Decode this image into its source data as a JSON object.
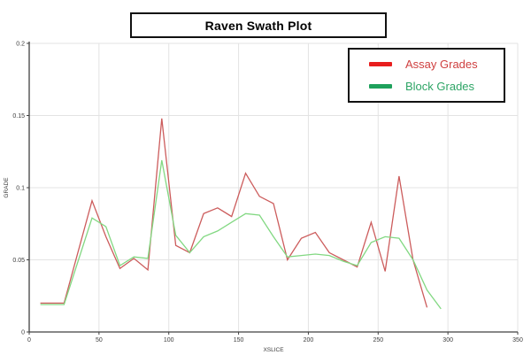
{
  "title": "Raven Swath Plot",
  "legend": {
    "items": [
      {
        "label": "Assay Grades",
        "color": "#e81e1e",
        "text_color": "#cf4040"
      },
      {
        "label": "Block Grades",
        "color": "#1ea15c",
        "text_color": "#2ea566"
      }
    ]
  },
  "chart_data": {
    "type": "line",
    "title": "Raven Swath Plot",
    "xlabel": "XSLICE",
    "ylabel": "GRADE",
    "xlim": [
      0,
      350
    ],
    "ylim": [
      0,
      0.2
    ],
    "x_ticks": [
      0,
      50,
      100,
      150,
      200,
      250,
      300,
      350
    ],
    "y_ticks": [
      0,
      0.05,
      0.1,
      0.15,
      0.2
    ],
    "grid": true,
    "legend_position": "top-right",
    "colors": {
      "grid": "#e3e3e3",
      "axis": "#404040",
      "tick_text": "#3d3d3d"
    },
    "series": [
      {
        "name": "Assay Grades",
        "color": "#cc5c5c",
        "x": [
          8,
          25,
          45,
          55,
          65,
          75,
          85,
          95,
          105,
          115,
          125,
          135,
          145,
          155,
          165,
          175,
          185,
          195,
          205,
          215,
          225,
          235,
          245,
          255,
          265,
          275,
          285
        ],
        "values": [
          0.02,
          0.02,
          0.091,
          0.066,
          0.044,
          0.051,
          0.043,
          0.148,
          0.06,
          0.055,
          0.082,
          0.086,
          0.08,
          0.11,
          0.094,
          0.089,
          0.05,
          0.065,
          0.069,
          0.055,
          0.05,
          0.045,
          0.076,
          0.042,
          0.108,
          0.05,
          0.017
        ]
      },
      {
        "name": "Block Grades",
        "color": "#82d882",
        "x": [
          8,
          25,
          45,
          55,
          65,
          75,
          85,
          95,
          105,
          115,
          125,
          135,
          145,
          155,
          165,
          175,
          185,
          195,
          205,
          215,
          225,
          235,
          245,
          255,
          265,
          275,
          285,
          295
        ],
        "values": [
          0.019,
          0.019,
          0.079,
          0.073,
          0.046,
          0.052,
          0.051,
          0.119,
          0.067,
          0.055,
          0.066,
          0.07,
          0.076,
          0.082,
          0.081,
          0.066,
          0.052,
          0.053,
          0.054,
          0.053,
          0.049,
          0.046,
          0.062,
          0.066,
          0.065,
          0.05,
          0.029,
          0.016
        ]
      }
    ]
  }
}
